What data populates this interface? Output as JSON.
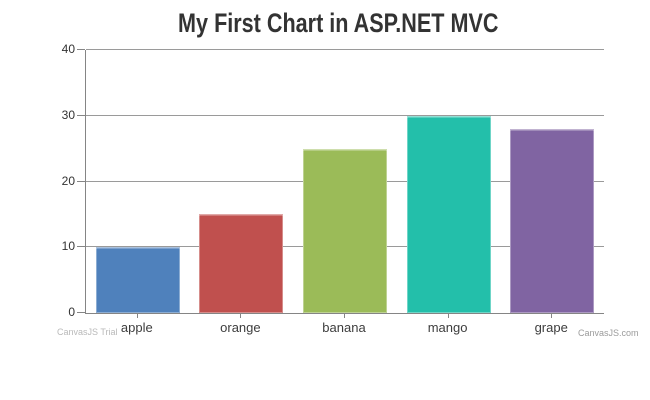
{
  "chart": {
    "title": "My First Chart in ASP.NET MVC"
  },
  "watermarks": {
    "trial_label": "CanvasJS Trial",
    "credit_label": "CanvasJS.com"
  },
  "chart_data": {
    "type": "bar",
    "title": "My First Chart in ASP.NET MVC",
    "categories": [
      "apple",
      "orange",
      "banana",
      "mango",
      "grape"
    ],
    "values": [
      10,
      15,
      25,
      30,
      28
    ],
    "bar_colors": [
      "#4F81BC",
      "#C0504E",
      "#9BBB58",
      "#23BFAA",
      "#8064A2"
    ],
    "xlabel": "",
    "ylabel": "",
    "ylim": [
      0,
      40
    ],
    "yticks": [
      0,
      10,
      20,
      30,
      40
    ],
    "grid": true,
    "legend_position": "none",
    "style_colors": {
      "title": "#333333",
      "gridline": "#9a9a9a",
      "axis": "#858585",
      "tick_label": "#333333",
      "category_label": "#3d3d3d",
      "watermark_trial": "#b9b9b9",
      "watermark_credit": "#9b9b9b",
      "background": "#ffffff"
    }
  }
}
